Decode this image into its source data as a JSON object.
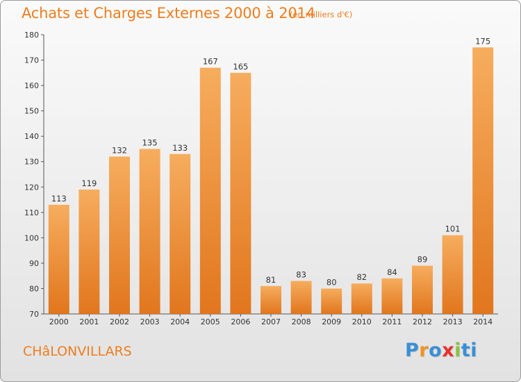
{
  "title": "Achats et Charges Externes 2000 à 2014",
  "subtitle": "(en milliers d'€)",
  "commune": "CHâLONVILLARS",
  "logo": {
    "text": [
      "P",
      "r",
      "o",
      "x",
      "i",
      "t",
      "i"
    ],
    "colors": [
      "#3a8fd6",
      "#f29320",
      "#3a8fd6",
      "#e8312a",
      "#8ac43f",
      "#3a8fd6",
      "#3a8fd6"
    ]
  },
  "colors": {
    "bar_top": "#f6ad5e",
    "bar_bottom": "#e1761d",
    "accent": "#ee7d1e"
  },
  "chart_data": {
    "type": "bar",
    "categories": [
      "2000",
      "2001",
      "2002",
      "2003",
      "2004",
      "2005",
      "2006",
      "2007",
      "2008",
      "2009",
      "2010",
      "2011",
      "2012",
      "2013",
      "2014"
    ],
    "values": [
      113,
      119,
      132,
      135,
      133,
      167,
      165,
      81,
      83,
      80,
      82,
      84,
      89,
      101,
      175
    ],
    "ylim": [
      70,
      180
    ],
    "yticks": [
      70,
      80,
      90,
      100,
      110,
      120,
      130,
      140,
      150,
      160,
      170,
      180
    ],
    "grid": false
  }
}
